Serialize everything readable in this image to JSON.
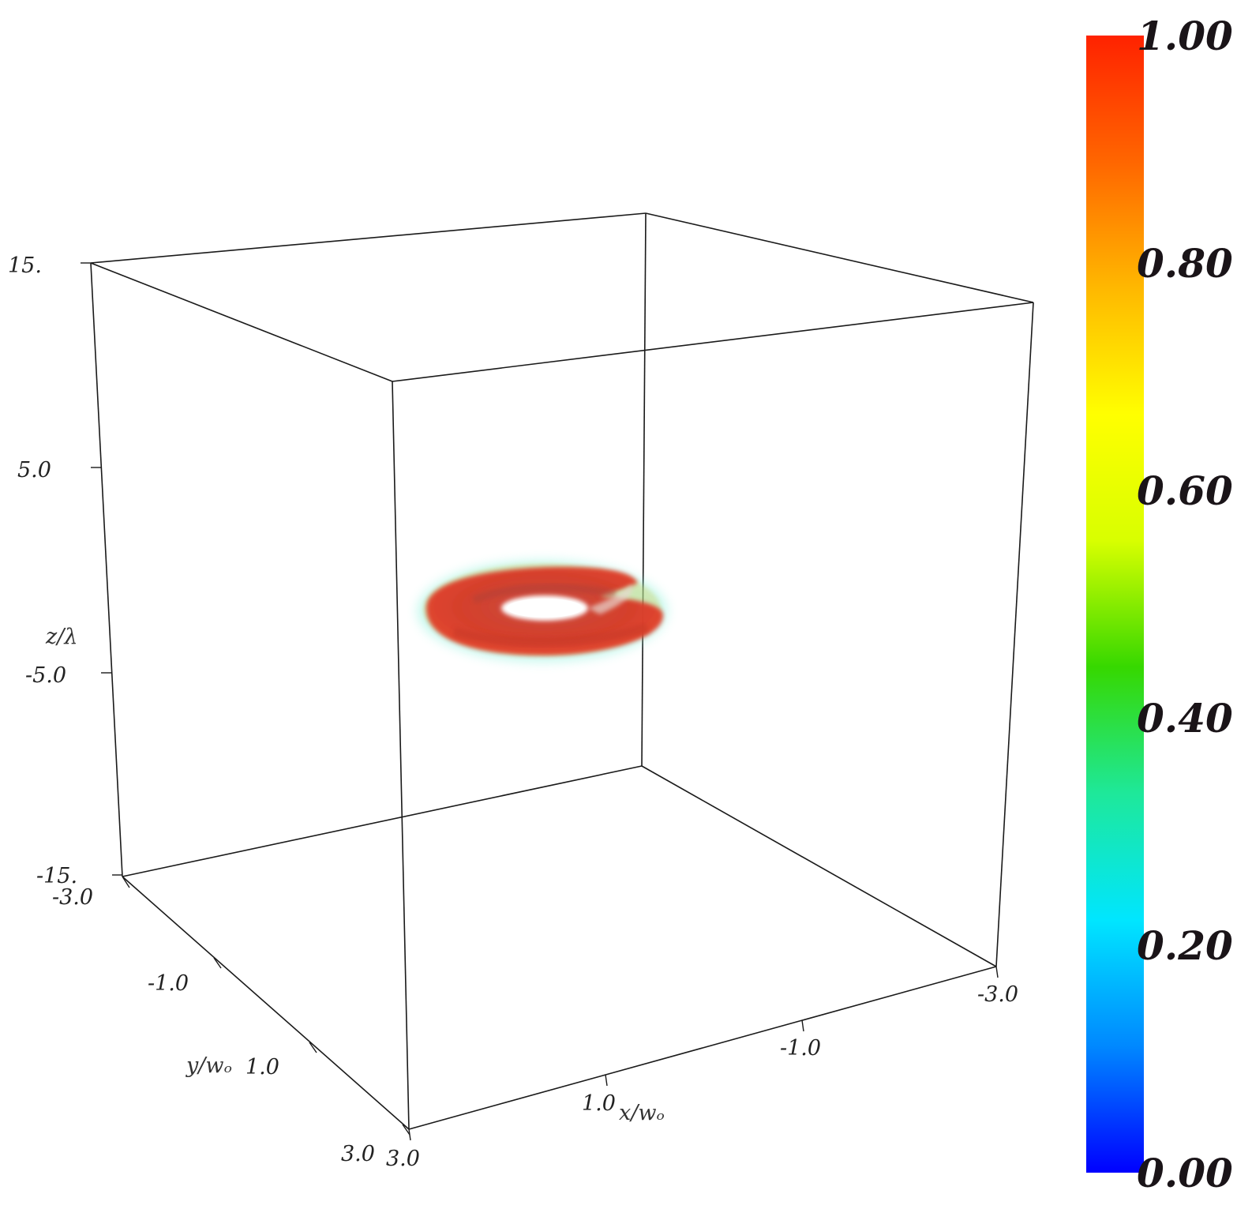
{
  "chart_data": {
    "type": "volume-3d",
    "axes": {
      "x": {
        "label": "x/wₒ",
        "ticks": [
          "-3.0",
          "-1.0",
          "1.0",
          "3.0"
        ],
        "range": [
          -3.0,
          3.0
        ]
      },
      "y": {
        "label": "y/wₒ",
        "ticks": [
          "-3.0",
          "-1.0",
          "1.0",
          "3.0"
        ],
        "range": [
          -3.0,
          3.0
        ]
      },
      "z": {
        "label": "z/λ",
        "ticks": [
          "15.",
          "5.0",
          "-5.0",
          "-15."
        ],
        "range": [
          -15,
          15
        ]
      }
    },
    "colorbar": {
      "ticks": [
        "1.00",
        "0.80",
        "0.60",
        "0.40",
        "0.20",
        "0.00"
      ],
      "range": [
        0.0,
        1.0
      ],
      "colormap": [
        "#0000ff",
        "#0088ff",
        "#00e6ff",
        "#1ee89a",
        "#36d800",
        "#d8ff00",
        "#ffff00",
        "#ffb800",
        "#ff6600",
        "#ff2200"
      ]
    },
    "object": {
      "shape": "torus",
      "dominant_color": "#e03a2a",
      "z_center": 0.0
    }
  }
}
